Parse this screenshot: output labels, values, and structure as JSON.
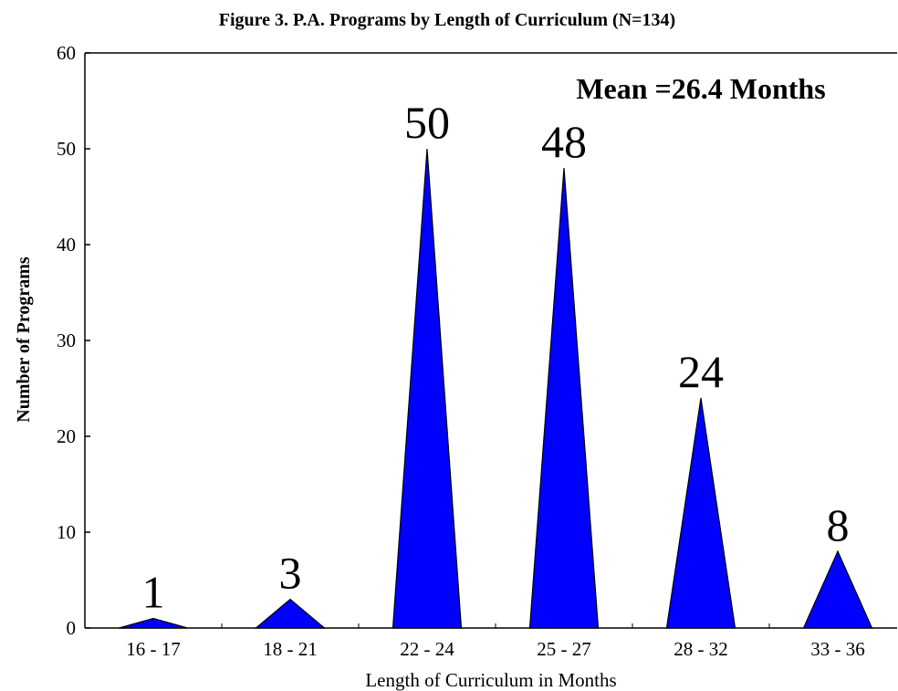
{
  "chart_data": {
    "type": "bar",
    "bar_shape": "triangle",
    "title": "Figure 3.  P.A. Programs by Length of Curriculum (N=134)",
    "annotation": "Mean =26.4 Months",
    "x_label": "Length of Curriculum in Months",
    "y_label": "Number of Programs",
    "categories": [
      "16 - 17",
      "18 - 21",
      "22 - 24",
      "25 - 27",
      "28 - 32",
      "33 - 36"
    ],
    "values": [
      1,
      3,
      50,
      48,
      24,
      8
    ],
    "color": "#0000ff",
    "ylim": [
      0,
      60
    ],
    "yticks": [
      0,
      10,
      20,
      30,
      40,
      50,
      60
    ],
    "grid": false
  }
}
